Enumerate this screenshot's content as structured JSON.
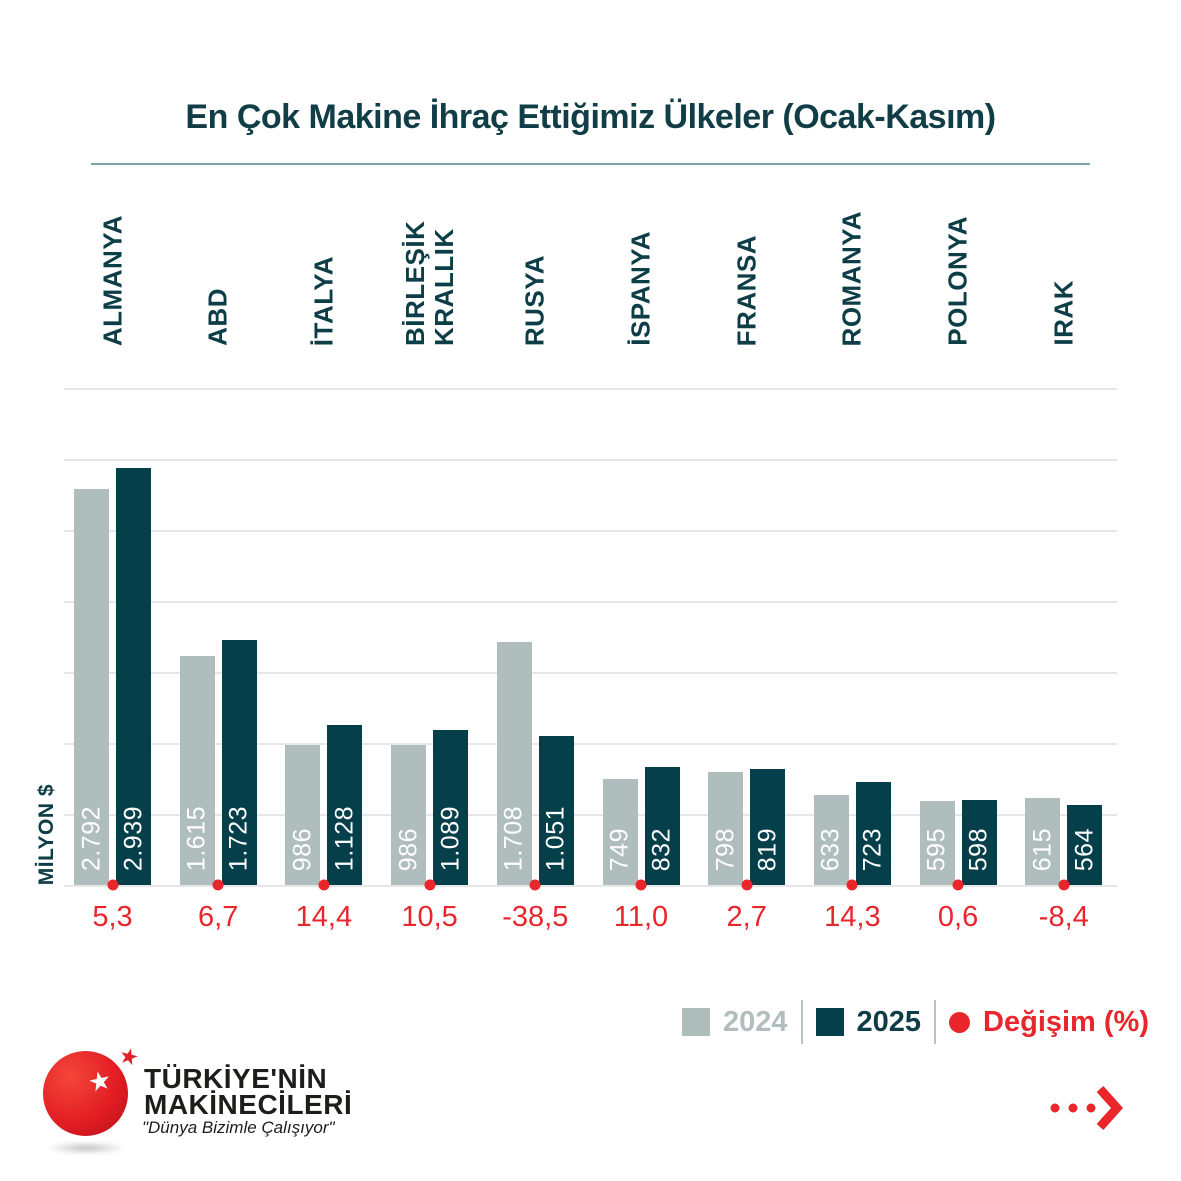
{
  "title": "En Çok Makine İhraç Ettiğimiz Ülkeler (Ocak-Kasım)",
  "y_axis_label": "MİLYON $",
  "legend": {
    "label_2024": "2024",
    "label_2025": "2025",
    "label_change": "Değişim (%)"
  },
  "logo": {
    "line1": "TÜRKİYE'NİN",
    "line2": "MAKİNECİLERİ",
    "tagline": "\"Dünya Bizimle Çalışıyor\"",
    "star_icon": "★"
  },
  "colors": {
    "teal_dark": "#053f4a",
    "teal_text": "#0d3d47",
    "gray_bar": "#afbdbc",
    "gray_legend_text": "#b2bdbd",
    "red_accent": "#e9262c",
    "gridline": "#e7e7e7",
    "title_divider": "#7ba4aa"
  },
  "chart_data": {
    "type": "bar",
    "title": "En Çok Makine İhraç Ettiğimiz Ülkeler (Ocak-Kasım)",
    "xlabel": "",
    "ylabel": "MİLYON $",
    "ylim": [
      0,
      3500
    ],
    "gridline_step": 500,
    "grid": true,
    "legend_position": "bottom-right",
    "categories": [
      "ALMANYA",
      "ABD",
      "İTALYA",
      "BİRLEŞİK KRALLIK",
      "RUSYA",
      "İSPANYA",
      "FRANSA",
      "ROMANYA",
      "POLONYA",
      "IRAK"
    ],
    "series": [
      {
        "name": "2024",
        "values": [
          2792,
          1615,
          986,
          986,
          1708,
          749,
          798,
          633,
          595,
          615
        ],
        "labels": [
          "2.792",
          "1.615",
          "986",
          "986",
          "1.708",
          "749",
          "798",
          "633",
          "595",
          "615"
        ]
      },
      {
        "name": "2025",
        "values": [
          2939,
          1723,
          1128,
          1089,
          1051,
          832,
          819,
          723,
          598,
          564
        ],
        "labels": [
          "2.939",
          "1.723",
          "1.128",
          "1.089",
          "1.051",
          "832",
          "819",
          "723",
          "598",
          "564"
        ]
      }
    ],
    "change_percent": [
      "5,3",
      "6,7",
      "14,4",
      "10,5",
      "-38,5",
      "11,0",
      "2,7",
      "14,3",
      "0,6",
      "-8,4"
    ]
  }
}
